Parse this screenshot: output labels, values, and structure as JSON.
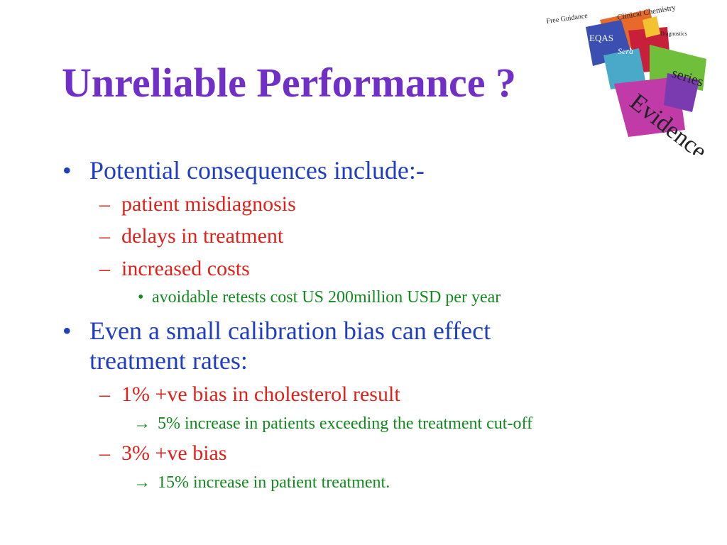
{
  "slide": {
    "title": "Unreliable Performance ?",
    "logo_text": {
      "free_guidance": "Free Guidance",
      "clinical_chemistry": "Clinical Chemistry",
      "diagnostics": "Diagnostics",
      "eqas": "EQAS",
      "sera": "Sera",
      "series": "series",
      "evidence": "Evidence"
    },
    "bullets": [
      {
        "marker": "•",
        "text": "Potential consequences include:-",
        "sub": [
          {
            "marker": "–",
            "text": "patient misdiagnosis"
          },
          {
            "marker": "–",
            "text": "delays in treatment"
          },
          {
            "marker": "–",
            "text": "increased costs",
            "sub": [
              {
                "marker": "•",
                "text": "avoidable retests cost US 200million USD per year"
              }
            ]
          }
        ]
      },
      {
        "marker": "•",
        "text_line1": "Even a small calibration bias can effect",
        "text_line2": "treatment rates:",
        "sub": [
          {
            "marker": "–",
            "text": "1% +ve bias in cholesterol result",
            "sub": [
              {
                "marker": "→",
                "text": "5% increase in patients exceeding the treatment cut-off"
              }
            ]
          },
          {
            "marker": "–",
            "text": "3% +ve bias",
            "sub": [
              {
                "marker": "→",
                "text": "15% increase in patient treatment."
              }
            ]
          }
        ]
      }
    ]
  },
  "colors": {
    "title": "#7030c8",
    "level1": "#1f3fbf",
    "level2": "#e0201a",
    "level3": "#128a1e"
  },
  "logo_icon": "collage-logo-icon"
}
